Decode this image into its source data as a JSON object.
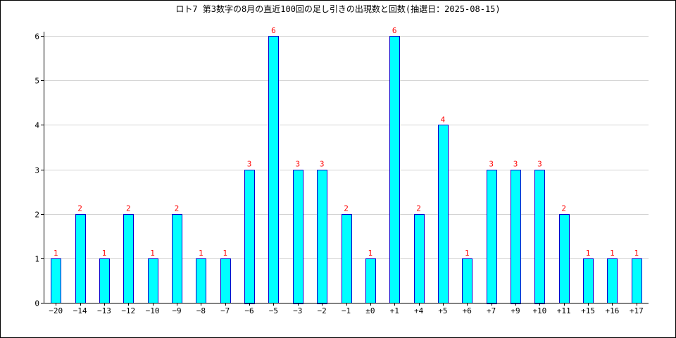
{
  "chart_data": {
    "type": "bar",
    "title": "ロト7 第3数字の8月の直近100回の足し引きの出現数と回数(抽選日：2025-08-15)",
    "xlabel": "",
    "ylabel": "",
    "categories": [
      "-20",
      "-14",
      "-13",
      "-12",
      "-10",
      "-9",
      "-8",
      "-7",
      "-6",
      "-5",
      "-3",
      "-2",
      "-1",
      "±0",
      "+1",
      "+4",
      "+5",
      "+6",
      "+7",
      "+9",
      "+10",
      "+11",
      "+15",
      "+16",
      "+17"
    ],
    "series": [
      {
        "values": [
          1,
          2,
          1,
          2,
          1,
          2,
          1,
          1,
          3,
          6,
          3,
          3,
          2,
          1,
          6,
          2,
          4,
          1,
          3,
          3,
          3,
          2,
          1,
          1,
          1
        ]
      }
    ],
    "ylim": [
      0,
      6
    ],
    "yticks": [
      0,
      1,
      2,
      3,
      4,
      5,
      6
    ],
    "grid": true,
    "legend": "none",
    "colors": {
      "bar_fill": "#00FFFF",
      "bar_stroke": "#0000CC",
      "data_label": "#FF0000",
      "grid": "#d3d3d3",
      "axis": "#000000"
    }
  }
}
